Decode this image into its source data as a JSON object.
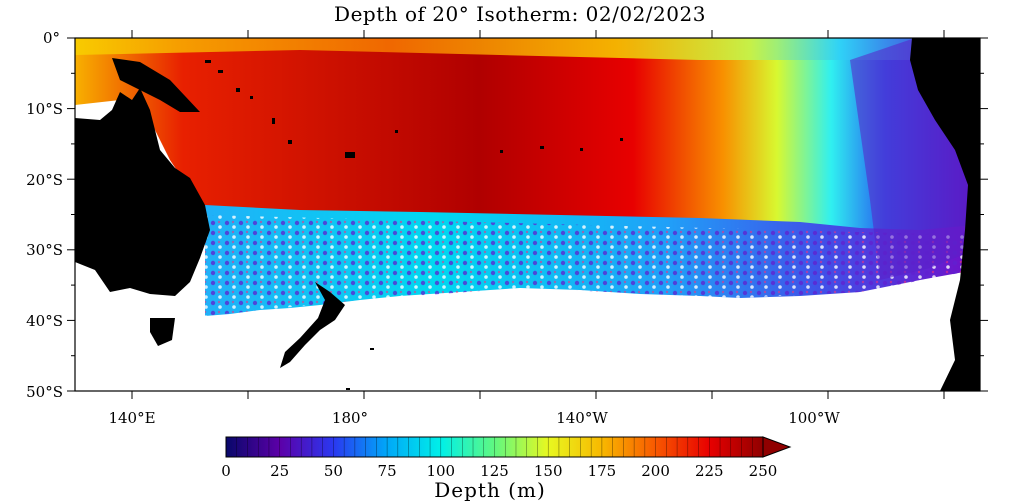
{
  "title": "Depth of 20° Isotherm: 02/02/2023",
  "lat_labels": [
    "0°",
    "10°S",
    "20°S",
    "30°S",
    "40°S",
    "50°S"
  ],
  "lon_labels": [
    "140°E",
    "180°",
    "140°W",
    "100°W"
  ],
  "colorbar": {
    "title": "Depth (m)",
    "ticks": [
      "0",
      "25",
      "50",
      "75",
      "100",
      "125",
      "150",
      "175",
      "200",
      "225",
      "250"
    ],
    "min": 0,
    "max": 250,
    "unit": "m",
    "extend": "max",
    "colors": [
      "#08086a",
      "#5c00a8",
      "#2a38f0",
      "#00a8f8",
      "#00f0e8",
      "#60f880",
      "#e8f820",
      "#f8b800",
      "#f85800",
      "#e80000",
      "#900000"
    ]
  },
  "map": {
    "region": "Tropical and South Pacific",
    "lat_range": [
      -50,
      0
    ],
    "lon_range": [
      130,
      285
    ],
    "land_color": "#000000",
    "no_data_color": "#ffffff"
  }
}
